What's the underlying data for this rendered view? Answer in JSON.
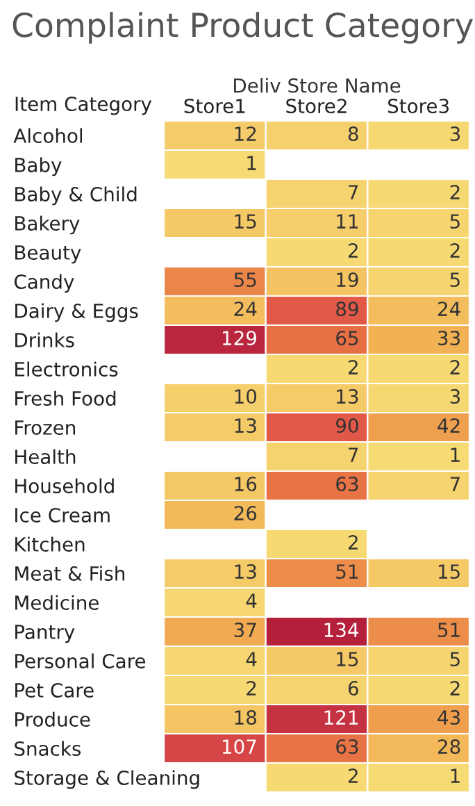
{
  "chart_data": {
    "type": "heatmap",
    "title": "Complaint Product Category",
    "xlabel": "Deliv Store Name",
    "ylabel": "Item Category",
    "categories": [
      "Store1",
      "Store2",
      "Store3"
    ],
    "y_categories": [
      "Alcohol",
      "Baby",
      "Baby & Child",
      "Bakery",
      "Beauty",
      "Candy",
      "Dairy & Eggs",
      "Drinks",
      "Electronics",
      "Fresh Food",
      "Frozen",
      "Health",
      "Household",
      "Ice Cream",
      "Kitchen",
      "Meat & Fish",
      "Medicine",
      "Pantry",
      "Personal Care",
      "Pet Care",
      "Produce",
      "Snacks",
      "Storage & Cleaning"
    ],
    "cells": [
      [
        12,
        8,
        3
      ],
      [
        1,
        null,
        null
      ],
      [
        null,
        7,
        2
      ],
      [
        15,
        11,
        5
      ],
      [
        null,
        2,
        2
      ],
      [
        55,
        19,
        5
      ],
      [
        24,
        89,
        24
      ],
      [
        129,
        65,
        33
      ],
      [
        null,
        2,
        2
      ],
      [
        10,
        13,
        3
      ],
      [
        13,
        90,
        42
      ],
      [
        null,
        7,
        1
      ],
      [
        16,
        63,
        7
      ],
      [
        26,
        null,
        null
      ],
      [
        null,
        2,
        null
      ],
      [
        13,
        51,
        15
      ],
      [
        4,
        null,
        null
      ],
      [
        37,
        134,
        51
      ],
      [
        4,
        15,
        5
      ],
      [
        2,
        6,
        2
      ],
      [
        18,
        121,
        43
      ],
      [
        107,
        63,
        28
      ],
      [
        null,
        2,
        1
      ]
    ],
    "data_labels": true
  }
}
